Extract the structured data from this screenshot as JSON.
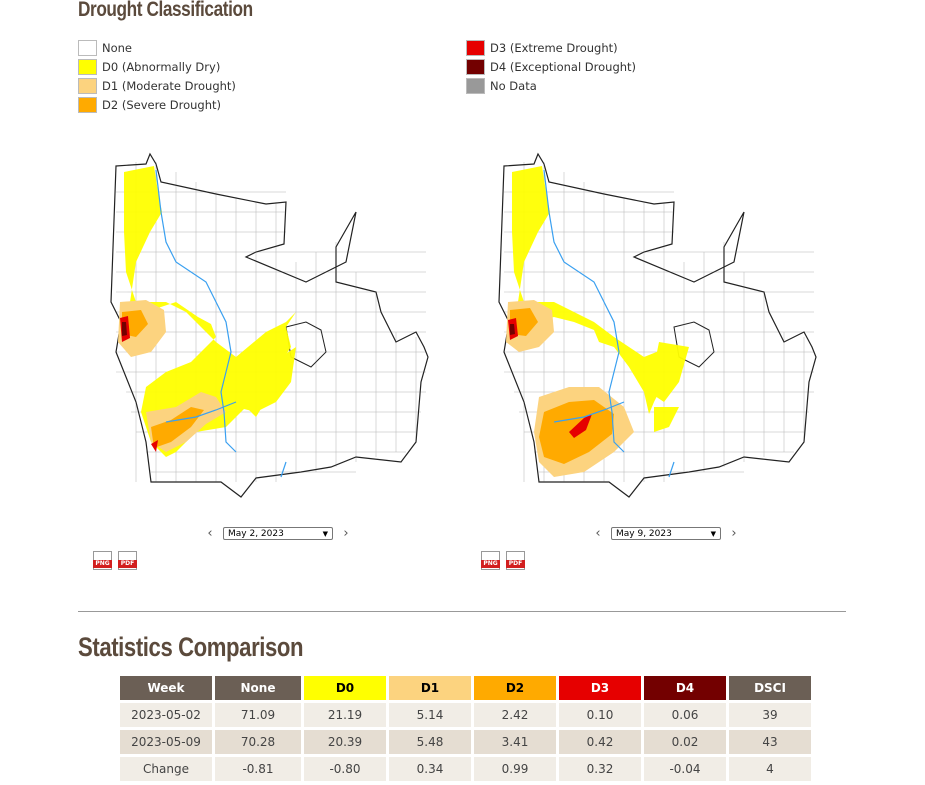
{
  "headings": {
    "drought_classification": "Drought Classification",
    "statistics_comparison": "Statistics Comparison"
  },
  "legend": [
    {
      "label": "None",
      "color": "#ffffff"
    },
    {
      "label": "D0 (Abnormally Dry)",
      "color": "#ffff00"
    },
    {
      "label": "D1 (Moderate Drought)",
      "color": "#fcd37f"
    },
    {
      "label": "D2 (Severe Drought)",
      "color": "#ffaa00"
    },
    {
      "label": "D3 (Extreme Drought)",
      "color": "#e60000"
    },
    {
      "label": "D4 (Exceptional Drought)",
      "color": "#730000"
    },
    {
      "label": "No Data",
      "color": "#999999"
    }
  ],
  "maps": [
    {
      "date": "May 2, 2023",
      "prev": "‹",
      "next": "›",
      "png": "PNG",
      "pdf": "PDF"
    },
    {
      "date": "May 9, 2023",
      "prev": "‹",
      "next": "›",
      "png": "PNG",
      "pdf": "PDF"
    }
  ],
  "table": {
    "headers": [
      {
        "label": "Week",
        "bg": "#6b5f55",
        "fg": "#ffffff"
      },
      {
        "label": "None",
        "bg": "#6b5f55",
        "fg": "#ffffff"
      },
      {
        "label": "D0",
        "bg": "#ffff00",
        "fg": "#000000"
      },
      {
        "label": "D1",
        "bg": "#fcd37f",
        "fg": "#000000"
      },
      {
        "label": "D2",
        "bg": "#ffaa00",
        "fg": "#000000"
      },
      {
        "label": "D3",
        "bg": "#e60000",
        "fg": "#ffffff"
      },
      {
        "label": "D4",
        "bg": "#730000",
        "fg": "#ffffff"
      },
      {
        "label": "DSCI",
        "bg": "#6b5f55",
        "fg": "#ffffff"
      }
    ],
    "rows": [
      [
        "2023-05-02",
        "71.09",
        "21.19",
        "5.14",
        "2.42",
        "0.10",
        "0.06",
        "39"
      ],
      [
        "2023-05-09",
        "70.28",
        "20.39",
        "5.48",
        "3.41",
        "0.42",
        "0.02",
        "43"
      ],
      [
        "Change",
        "-0.81",
        "-0.80",
        "0.34",
        "0.99",
        "0.32",
        "-0.04",
        "4"
      ]
    ]
  }
}
